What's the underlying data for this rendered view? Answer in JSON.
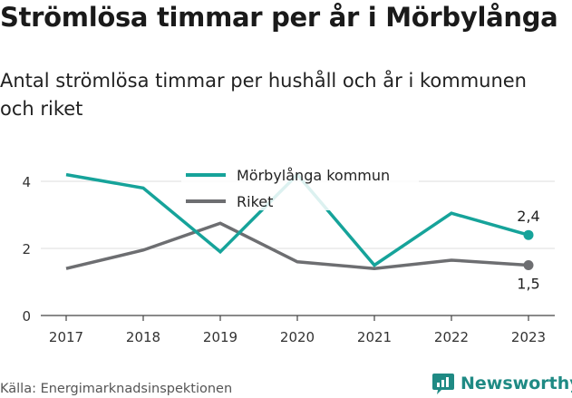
{
  "title": "Strömlösa timmar per år i Mörbylånga",
  "subtitle": "Antal strömlösa timmar per hushåll och år i kommunen och riket",
  "source": "Källa: Energimarknadsinspektionen",
  "brand": {
    "name": "Newsworthy",
    "icon": "newsworthy-logo-icon",
    "color": "#1f8a84"
  },
  "chart_data": {
    "type": "line",
    "x": [
      "2017",
      "2018",
      "2019",
      "2020",
      "2021",
      "2022",
      "2023"
    ],
    "ylim": [
      0,
      4.7
    ],
    "yticks": [
      0,
      2,
      4
    ],
    "ytick_labels": [
      "0",
      "2",
      "4"
    ],
    "grid": true,
    "legend": "top-center",
    "series": [
      {
        "name": "Mörbylånga kommun",
        "color": "#16a39a",
        "values": [
          4.2,
          3.8,
          1.9,
          4.2,
          1.5,
          3.05,
          2.4
        ],
        "end_label": "2,4"
      },
      {
        "name": "Riket",
        "color": "#6d6e71",
        "values": [
          1.4,
          1.95,
          2.75,
          1.6,
          1.4,
          1.65,
          1.5
        ],
        "end_label": "1,5"
      }
    ]
  }
}
